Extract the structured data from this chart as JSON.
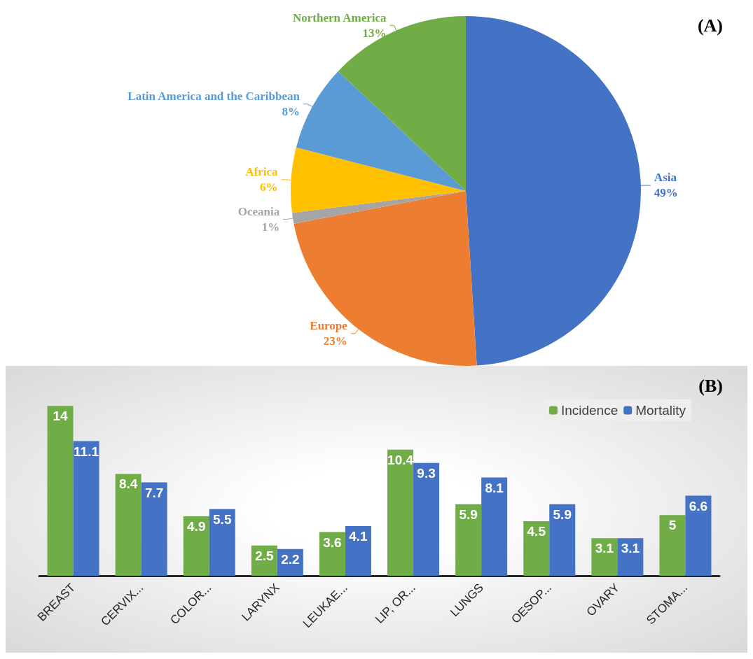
{
  "chart_data": [
    {
      "type": "pie",
      "title": "(A)",
      "categories": [
        "Asia",
        "Europe",
        "Oceania",
        "Africa",
        "Latin America and the Caribbean",
        "Northern America"
      ],
      "values": [
        49,
        23,
        1,
        6,
        8,
        13
      ],
      "value_labels": [
        "49%",
        "23%",
        "1%",
        "6%",
        "8%",
        "13%"
      ],
      "colors": [
        "#4472c4",
        "#ed7d31",
        "#a5a5a5",
        "#ffc000",
        "#5b9bd5",
        "#70ad47"
      ],
      "legend": false
    },
    {
      "type": "bar",
      "title": "(B)",
      "categories": [
        "BREAST",
        "CERVIX...",
        "COLOR...",
        "LARYNX",
        "LEUKAE...",
        "LIP, OR...",
        "LUNGS",
        "OESOP...",
        "OVARY",
        "STOMA..."
      ],
      "series": [
        {
          "name": "Incidence",
          "color": "#70ad47",
          "values": [
            14,
            8.4,
            4.9,
            2.5,
            3.6,
            10.4,
            5.9,
            4.5,
            3.1,
            5
          ]
        },
        {
          "name": "Mortality",
          "color": "#4472c4",
          "values": [
            11.1,
            7.7,
            5.5,
            2.2,
            4.1,
            9.3,
            8.1,
            5.9,
            3.1,
            6.6
          ]
        }
      ],
      "data_labels": true,
      "legend": "top right"
    }
  ]
}
